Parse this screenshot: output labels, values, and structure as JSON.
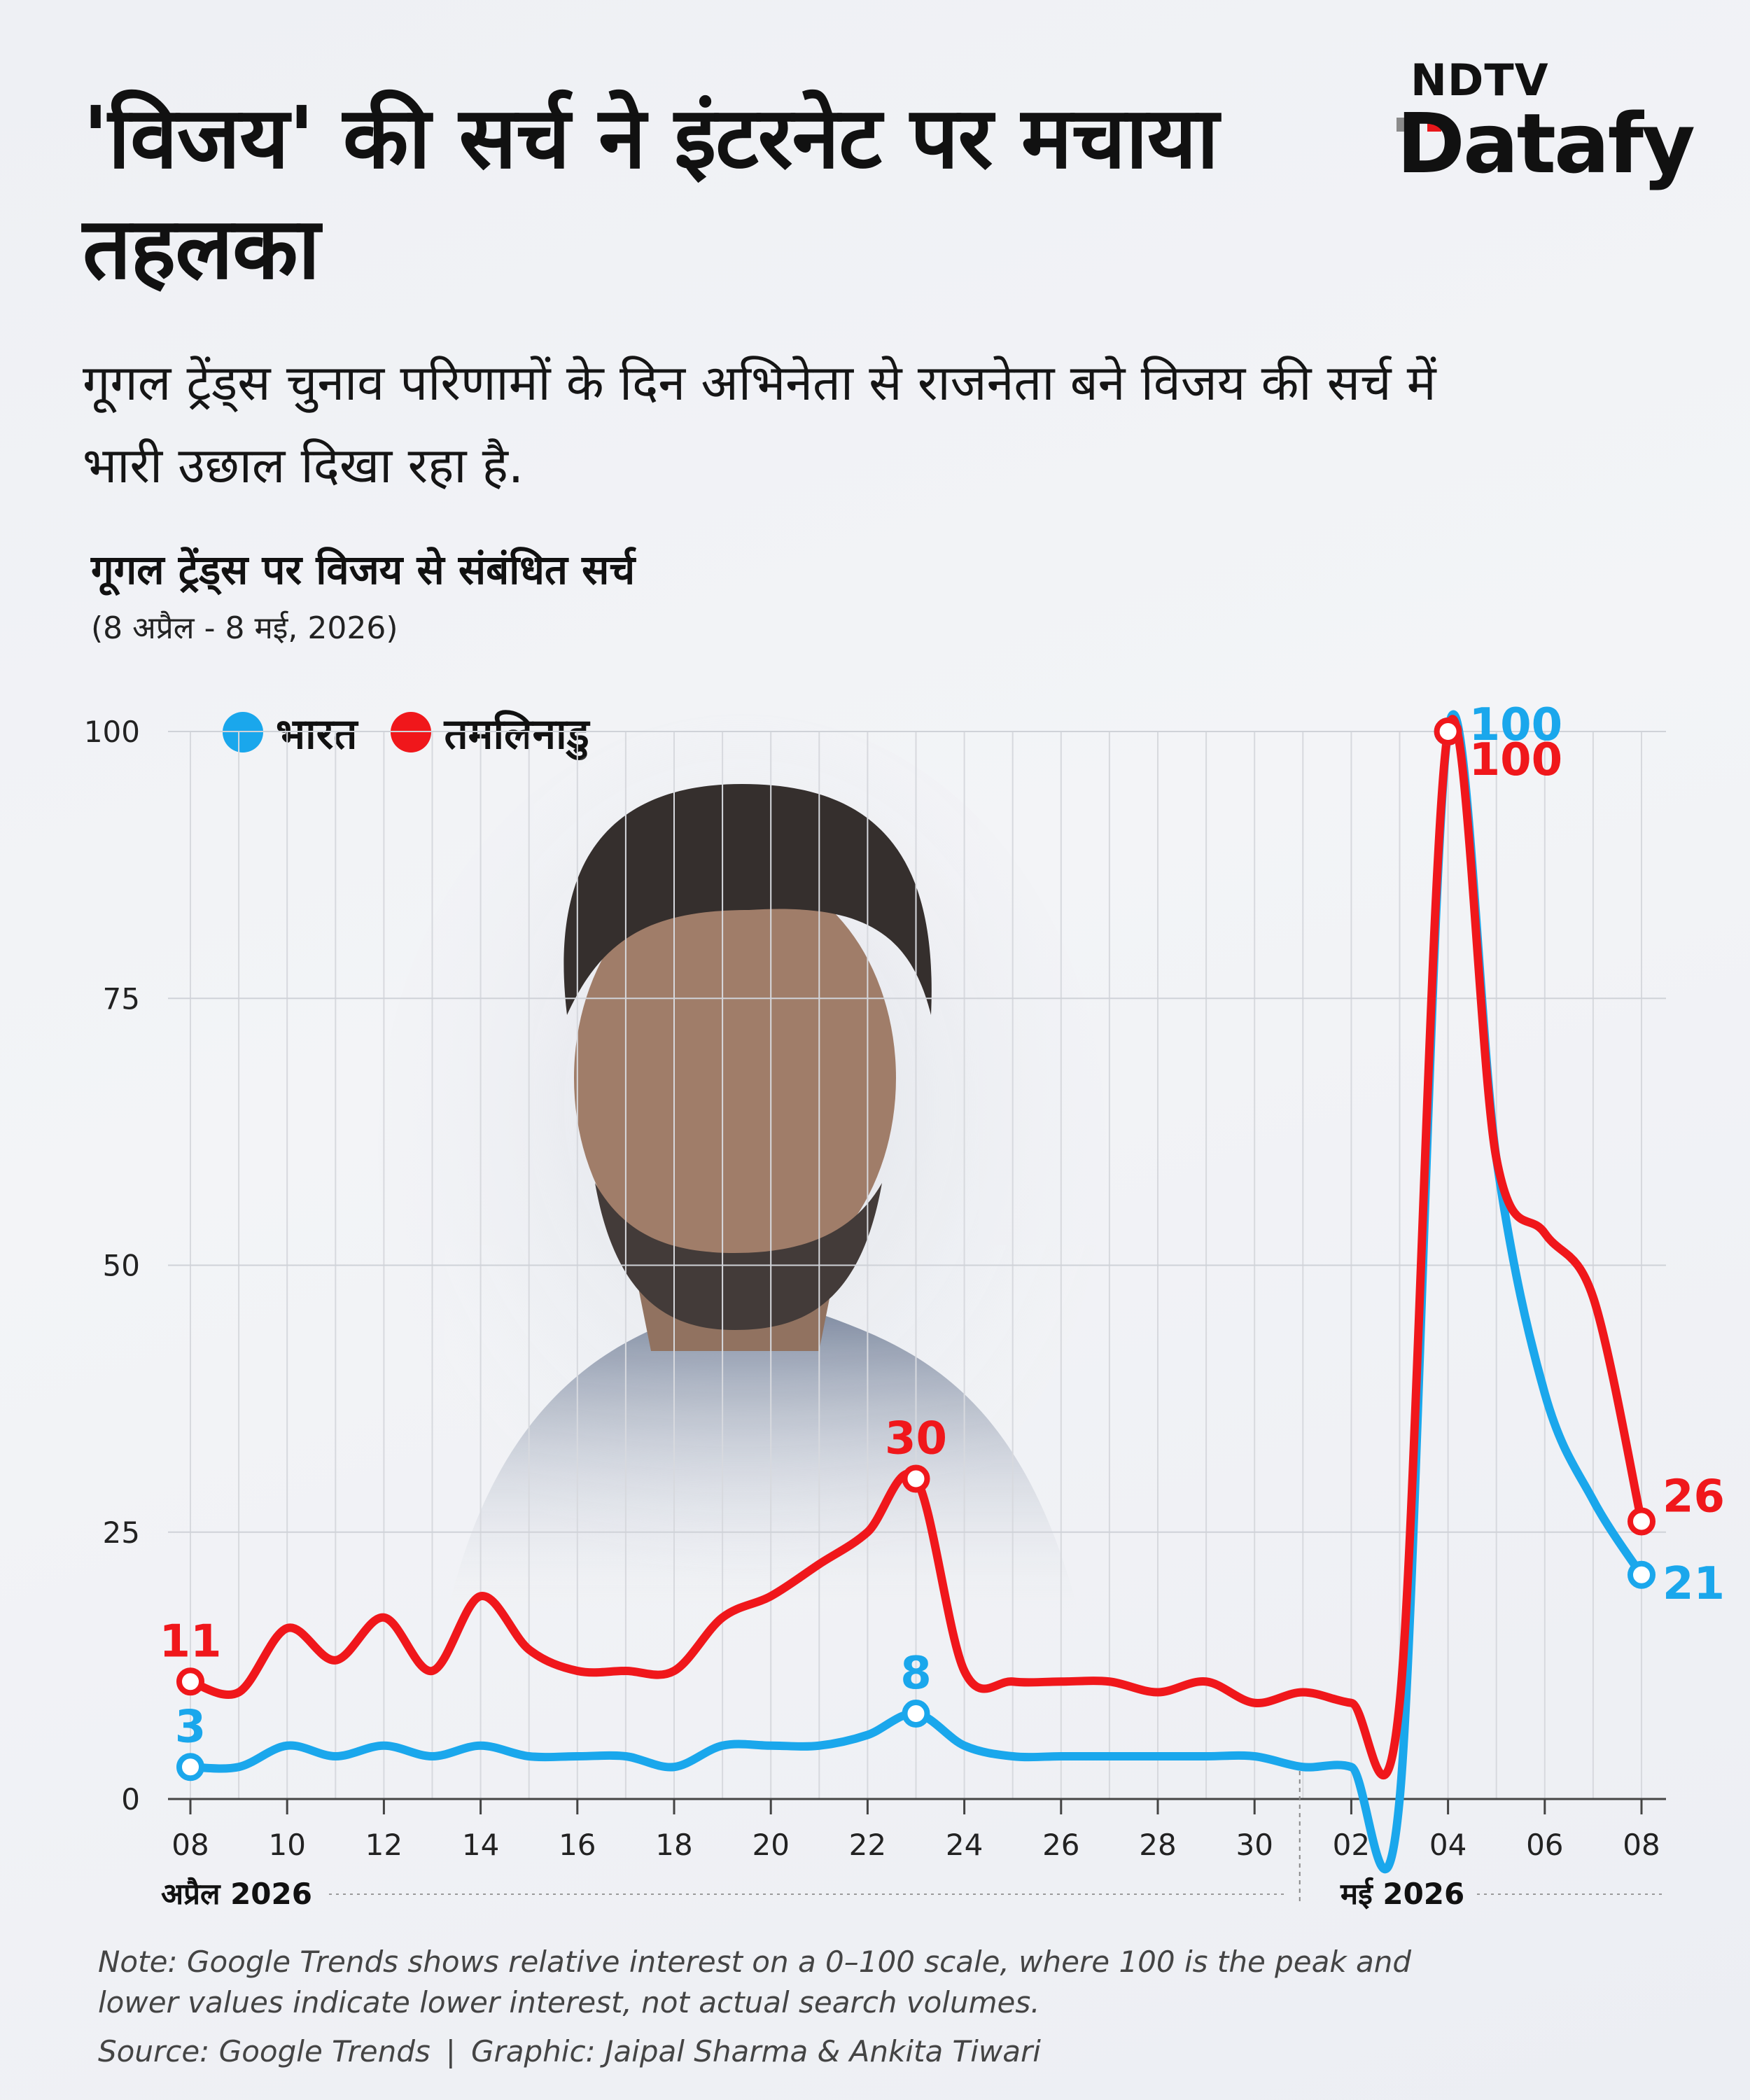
{
  "headline": "'विजय' की सर्च ने इंटरनेट पर मचाया तहलका",
  "subtitle": "गूगल ट्रेंड्स चुनाव परिणामों के दिन अभिनेता से राजनेता बने विजय की सर्च में भारी उछाल दिखा रहा है.",
  "brand": {
    "line1": "NDTV",
    "line2": "Datafy"
  },
  "note": "Note: Google Trends shows relative interest on a 0–100 scale, where 100 is the peak and lower values indicate lower interest, not actual search volumes.",
  "source": "Source: Google Trends",
  "graphic_credit": "Graphic: Jaipal Sharma & Ankita Tiwari",
  "credit_separator": "|",
  "chart_data": {
    "type": "line",
    "title": "गूगल ट्रेंड्स पर विजय से संबंधित सर्च",
    "subtitle": "(8 अप्रैल - 8 मई, 2026)",
    "x": [
      "2026-04-08",
      "2026-04-09",
      "2026-04-10",
      "2026-04-11",
      "2026-04-12",
      "2026-04-13",
      "2026-04-14",
      "2026-04-15",
      "2026-04-16",
      "2026-04-17",
      "2026-04-18",
      "2026-04-19",
      "2026-04-20",
      "2026-04-21",
      "2026-04-22",
      "2026-04-23",
      "2026-04-24",
      "2026-04-25",
      "2026-04-26",
      "2026-04-27",
      "2026-04-28",
      "2026-04-29",
      "2026-04-30",
      "2026-05-01",
      "2026-05-02",
      "2026-05-03",
      "2026-05-04",
      "2026-05-05",
      "2026-05-06",
      "2026-05-07",
      "2026-05-08"
    ],
    "x_tick_labels": [
      "08",
      "10",
      "12",
      "14",
      "16",
      "18",
      "20",
      "22",
      "24",
      "26",
      "28",
      "30",
      "02",
      "04",
      "06",
      "08"
    ],
    "x_month_labels": [
      {
        "label": "अप्रैल 2026",
        "start": "2026-04-08"
      },
      {
        "label": "मई 2026",
        "start": "2026-05-01"
      }
    ],
    "yticks": [
      0,
      25,
      50,
      75,
      100
    ],
    "ylim": [
      0,
      100
    ],
    "grid": true,
    "legend_position": "top-left",
    "series": [
      {
        "name": "भारत",
        "color": "#1aa7ec",
        "values": [
          3,
          3,
          5,
          4,
          5,
          4,
          5,
          4,
          4,
          4,
          3,
          5,
          5,
          5,
          6,
          8,
          5,
          4,
          4,
          4,
          4,
          4,
          4,
          3,
          3,
          0,
          100,
          60,
          38,
          28,
          21
        ],
        "labels": [
          {
            "date": "2026-04-08",
            "value": "3"
          },
          {
            "date": "2026-04-23",
            "value": "8"
          },
          {
            "date": "2026-05-04",
            "value": "100"
          },
          {
            "date": "2026-05-08",
            "value": "21"
          }
        ]
      },
      {
        "name": "तमलिनाडु",
        "color": "#f0171b",
        "values": [
          11,
          10,
          16,
          13,
          17,
          12,
          19,
          14,
          12,
          12,
          12,
          17,
          19,
          22,
          25,
          30,
          12,
          11,
          11,
          11,
          10,
          11,
          9,
          10,
          9,
          9,
          100,
          60,
          53,
          47,
          26
        ],
        "labels": [
          {
            "date": "2026-04-08",
            "value": "11"
          },
          {
            "date": "2026-04-23",
            "value": "30"
          },
          {
            "date": "2026-05-04",
            "value": "100"
          },
          {
            "date": "2026-05-08",
            "value": "26"
          }
        ]
      }
    ]
  }
}
